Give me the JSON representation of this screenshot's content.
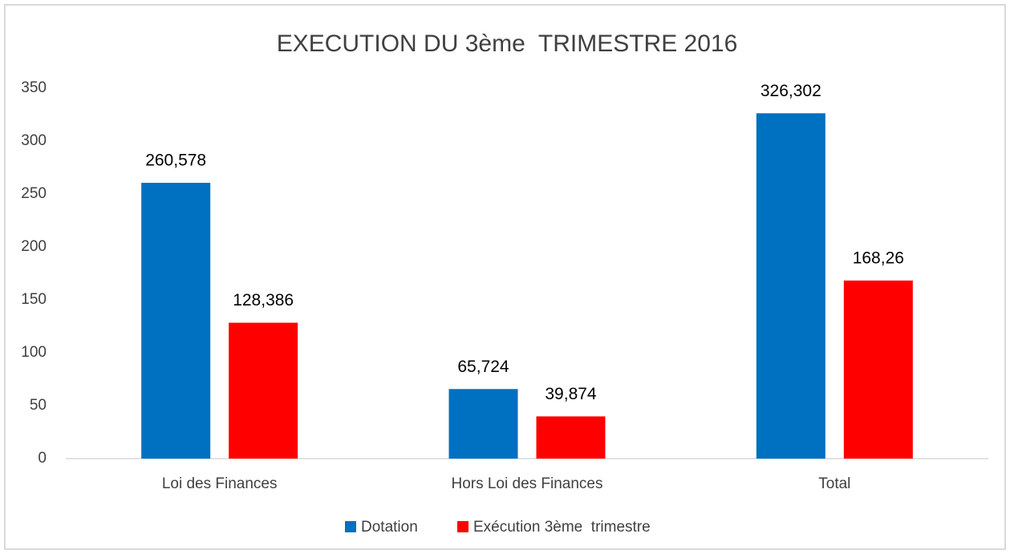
{
  "chart_data": {
    "type": "bar",
    "title": "EXECUTION DU 3ème  TRIMESTRE 2016",
    "categories": [
      "Loi des Finances",
      "Hors Loi des Finances",
      "Total"
    ],
    "series": [
      {
        "name": "Dotation",
        "color": "#0070c0",
        "values": [
          260.578,
          65.724,
          326.302
        ],
        "value_labels": [
          "260,578",
          "65,724",
          "326,302"
        ]
      },
      {
        "name": "Exécution 3ème  trimestre",
        "color": "#ff0000",
        "values": [
          128.386,
          39.874,
          168.26
        ],
        "value_labels": [
          "128,386",
          "39,874",
          "168,26"
        ]
      }
    ],
    "ylim": [
      0,
      350
    ],
    "yticks": [
      0,
      50,
      100,
      150,
      200,
      250,
      300,
      350
    ],
    "grid": false,
    "legend": "bottom"
  }
}
